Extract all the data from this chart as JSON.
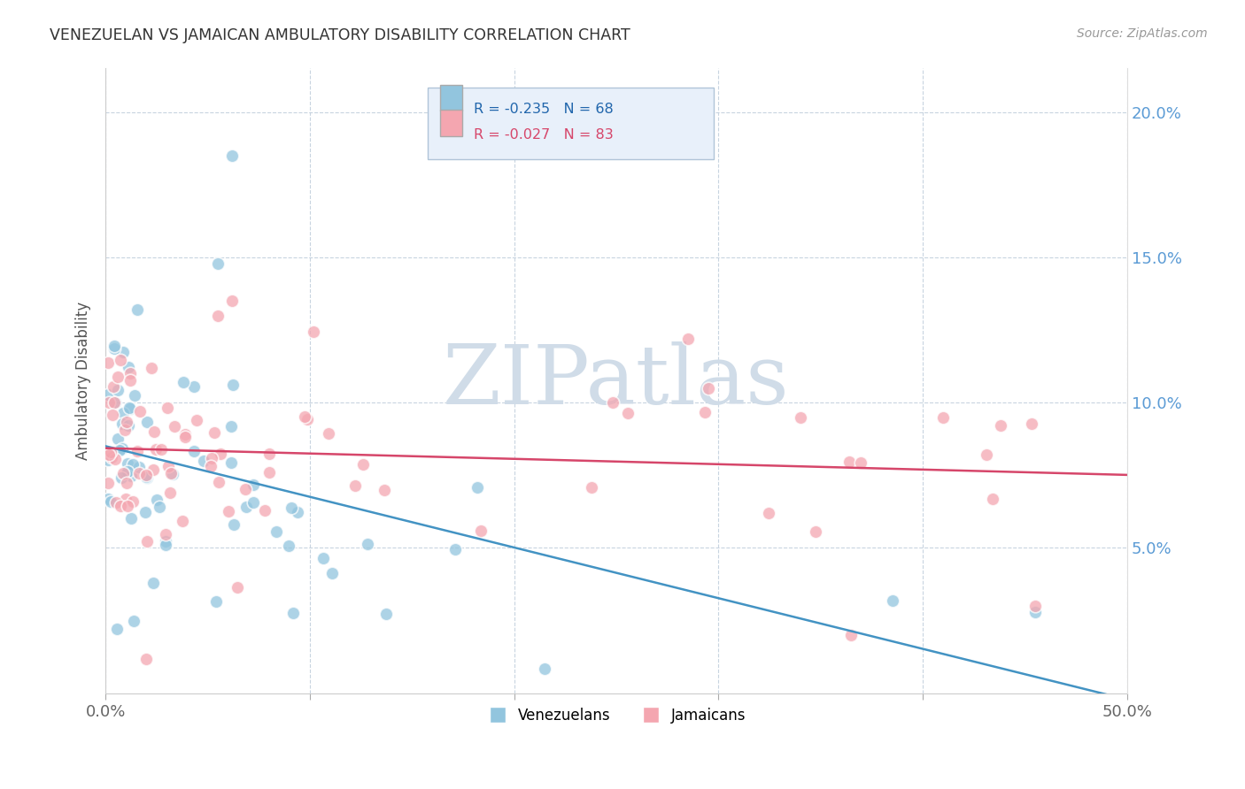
{
  "title": "VENEZUELAN VS JAMAICAN AMBULATORY DISABILITY CORRELATION CHART",
  "source_text": "Source: ZipAtlas.com",
  "ylabel": "Ambulatory Disability",
  "legend_blue": "R = -0.235   N = 68",
  "legend_pink": "R = -0.027   N = 83",
  "label_venezuelans": "Venezuelans",
  "label_jamaicans": "Jamaicans",
  "xlim": [
    0.0,
    0.5
  ],
  "ylim": [
    0.0,
    0.215
  ],
  "x_ticks": [
    0.0,
    0.1,
    0.2,
    0.3,
    0.4,
    0.5
  ],
  "x_tick_labels": [
    "0.0%",
    "",
    "",
    "",
    "",
    "50.0%"
  ],
  "y_ticks_right": [
    0.05,
    0.1,
    0.15,
    0.2
  ],
  "y_tick_labels_right": [
    "5.0%",
    "10.0%",
    "15.0%",
    "20.0%"
  ],
  "blue_scatter": "#92c5de",
  "pink_scatter": "#f4a6b0",
  "trend_blue": "#4393c3",
  "trend_pink": "#d6466a",
  "watermark_color": "#d0dce8",
  "background_color": "#ffffff",
  "grid_color": "#c8d4e0",
  "title_color": "#333333",
  "source_color": "#999999",
  "ytick_color": "#5b9bd5",
  "xtick_color": "#666666",
  "legend_box_color": "#e8f0fa",
  "legend_blue_text_color": "#2166ac",
  "legend_pink_text_color": "#d6466a"
}
